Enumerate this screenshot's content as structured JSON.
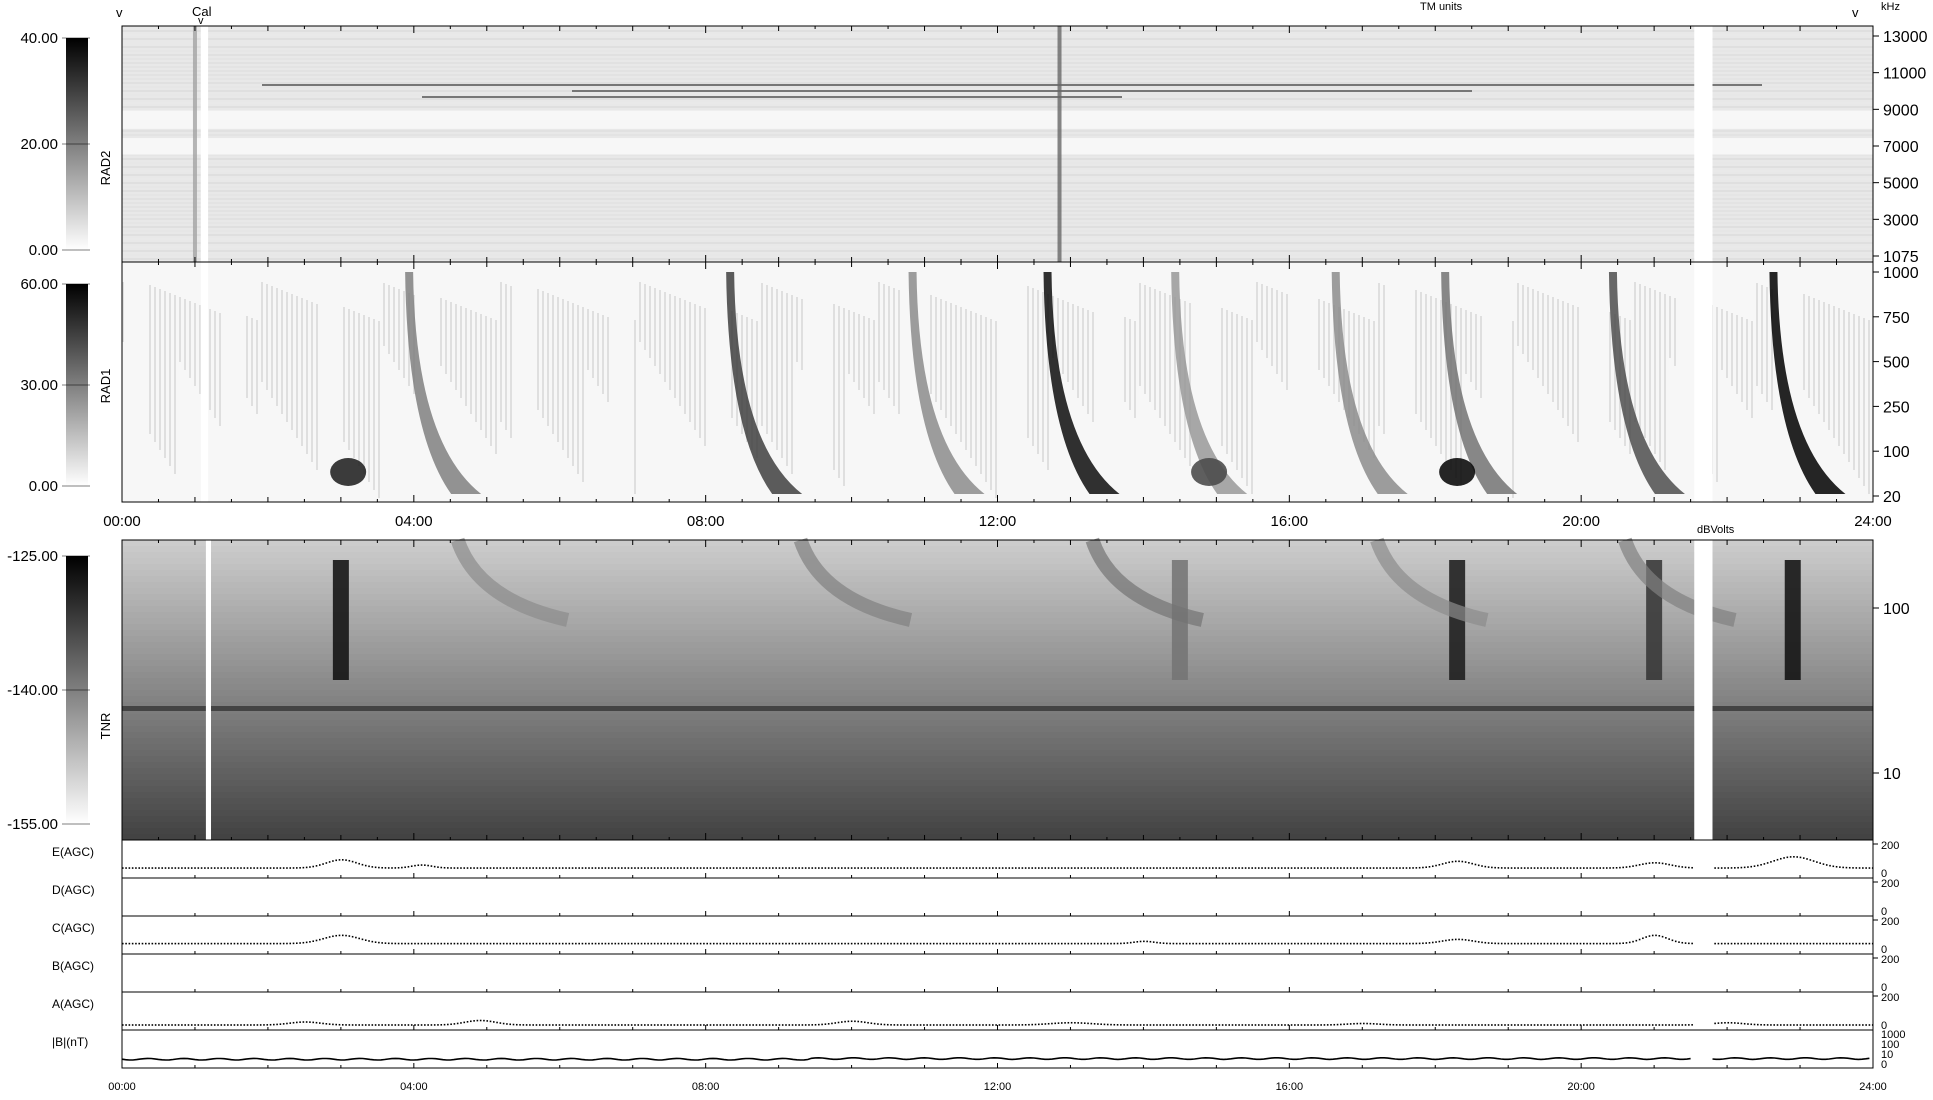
{
  "top_markers": {
    "left_v": "v",
    "cal": "Cal",
    "cal_v": "v",
    "right_v": "v"
  },
  "units": {
    "khz": "kHz",
    "tm_units": "TM units",
    "dbvolts": "dBVolts"
  },
  "colors": {
    "axis": "#000000",
    "background": "#ffffff",
    "gap": "#ffffff"
  },
  "chart_data": [
    {
      "type": "heatmap",
      "panel": "RAD2",
      "ylabel": "RAD2",
      "colorbar_ticks": [
        "40.00",
        "20.00",
        "0.00"
      ],
      "colorbar_range": [
        0,
        40
      ],
      "y_ticks": [
        "13000",
        "11000",
        "9000",
        "7000",
        "5000",
        "3000",
        "1075"
      ],
      "y_unit": "kHz",
      "gaps_hours": [
        [
          1.08,
          1.18
        ],
        [
          21.55,
          21.8
        ]
      ],
      "bright_bands_khz": [
        [
          6300,
          7200
        ],
        [
          7700,
          8700
        ]
      ],
      "features": [
        {
          "type": "burst",
          "hour": 12.85,
          "intensity": 1.0
        },
        {
          "type": "burst",
          "hour": 1.0,
          "intensity": 0.6
        }
      ]
    },
    {
      "type": "heatmap",
      "panel": "RAD1",
      "ylabel": "RAD1",
      "colorbar_ticks": [
        "60.00",
        "30.00",
        "0.00"
      ],
      "colorbar_range": [
        0,
        60
      ],
      "y_ticks": [
        "1000",
        "750",
        "500",
        "250",
        "100",
        "20"
      ],
      "x_ticks": [
        "00:00",
        "04:00",
        "08:00",
        "12:00",
        "16:00",
        "20:00",
        "24:00"
      ],
      "gaps_hours": [
        [
          1.08,
          1.18
        ],
        [
          21.55,
          21.8
        ]
      ],
      "features": [
        {
          "type": "burst",
          "hour": 4.1,
          "intensity": 0.5
        },
        {
          "type": "burst",
          "hour": 8.5,
          "intensity": 0.75
        },
        {
          "type": "burst",
          "hour": 11.0,
          "intensity": 0.45
        },
        {
          "type": "burst",
          "hour": 12.85,
          "intensity": 0.95
        },
        {
          "type": "burst",
          "hour": 14.6,
          "intensity": 0.4
        },
        {
          "type": "burst",
          "hour": 16.8,
          "intensity": 0.45
        },
        {
          "type": "burst",
          "hour": 18.3,
          "intensity": 0.55
        },
        {
          "type": "burst",
          "hour": 20.6,
          "intensity": 0.7
        },
        {
          "type": "burst",
          "hour": 22.8,
          "intensity": 1.0
        },
        {
          "type": "patch",
          "hour": 3.1,
          "intensity": 0.85
        },
        {
          "type": "patch",
          "hour": 14.9,
          "intensity": 0.7
        },
        {
          "type": "patch",
          "hour": 18.3,
          "intensity": 0.95
        }
      ]
    },
    {
      "type": "heatmap",
      "panel": "TNR",
      "ylabel": "TNR",
      "colorbar_ticks": [
        "-125.00",
        "-140.00",
        "-155.00"
      ],
      "colorbar_range": [
        -155,
        -125
      ],
      "colorbar_unit": "dBVolts",
      "y_ticks": [
        "100",
        "10"
      ],
      "gaps_hours": [
        [
          1.15,
          1.22
        ],
        [
          21.55,
          21.8
        ]
      ],
      "features": [
        {
          "type": "column",
          "hour": 3.0,
          "intensity": 0.95
        },
        {
          "type": "column",
          "hour": 14.5,
          "intensity": 0.55
        },
        {
          "type": "column",
          "hour": 18.3,
          "intensity": 0.9
        },
        {
          "type": "column",
          "hour": 21.0,
          "intensity": 0.8
        },
        {
          "type": "column",
          "hour": 22.9,
          "intensity": 0.95
        },
        {
          "type": "arc",
          "hour": 4.6,
          "intensity": 0.45
        },
        {
          "type": "arc",
          "hour": 9.3,
          "intensity": 0.5
        },
        {
          "type": "arc",
          "hour": 13.3,
          "intensity": 0.55
        },
        {
          "type": "arc",
          "hour": 17.2,
          "intensity": 0.45
        },
        {
          "type": "arc",
          "hour": 20.6,
          "intensity": 0.5
        }
      ]
    },
    {
      "type": "scatter",
      "panel": "E(AGC)",
      "ylabel": "E(AGC)",
      "y_ticks": [
        "200",
        "0"
      ],
      "ylim": [
        0,
        200
      ],
      "baseline": 45,
      "bumps": [
        [
          3.0,
          0.3,
          55
        ],
        [
          4.1,
          0.2,
          20
        ],
        [
          18.3,
          0.3,
          45
        ],
        [
          21.0,
          0.3,
          35
        ],
        [
          22.9,
          0.4,
          75
        ]
      ]
    },
    {
      "type": "scatter",
      "panel": "D(AGC)",
      "ylabel": "D(AGC)",
      "y_ticks": [
        "200",
        "0"
      ],
      "ylim": [
        0,
        200
      ],
      "baseline": null,
      "bumps": []
    },
    {
      "type": "scatter",
      "panel": "C(AGC)",
      "ylabel": "C(AGC)",
      "y_ticks": [
        "200",
        "0"
      ],
      "ylim": [
        0,
        200
      ],
      "baseline": 48,
      "bumps": [
        [
          3.0,
          0.35,
          55
        ],
        [
          14.0,
          0.2,
          15
        ],
        [
          18.3,
          0.3,
          28
        ],
        [
          21.0,
          0.25,
          55
        ]
      ]
    },
    {
      "type": "scatter",
      "panel": "B(AGC)",
      "ylabel": "B(AGC)",
      "y_ticks": [
        "200",
        "0"
      ],
      "ylim": [
        0,
        200
      ],
      "baseline": null,
      "bumps": []
    },
    {
      "type": "scatter",
      "panel": "A(AGC)",
      "ylabel": "A(AGC)",
      "y_ticks": [
        "200",
        "0"
      ],
      "ylim": [
        0,
        200
      ],
      "baseline": 12,
      "bumps": [
        [
          2.5,
          0.3,
          20
        ],
        [
          4.9,
          0.3,
          30
        ],
        [
          10.0,
          0.3,
          25
        ],
        [
          13.0,
          0.4,
          15
        ],
        [
          17.0,
          0.3,
          10
        ],
        [
          22.0,
          0.3,
          15
        ]
      ]
    },
    {
      "type": "line",
      "panel": "|B|(nT)",
      "ylabel": "|B|(nT)",
      "y_ticks": [
        "1000",
        "100",
        "10",
        "0"
      ],
      "yscale": "log",
      "values_nt": [
        [
          0,
          3.0
        ],
        [
          9.4,
          3.0
        ],
        [
          9.5,
          3.5
        ],
        [
          24,
          3.4
        ]
      ],
      "x_ticks": [
        "00:00",
        "04:00",
        "08:00",
        "12:00",
        "16:00",
        "20:00",
        "24:00"
      ],
      "gaps_hours": [
        [
          21.55,
          21.8
        ]
      ]
    }
  ]
}
